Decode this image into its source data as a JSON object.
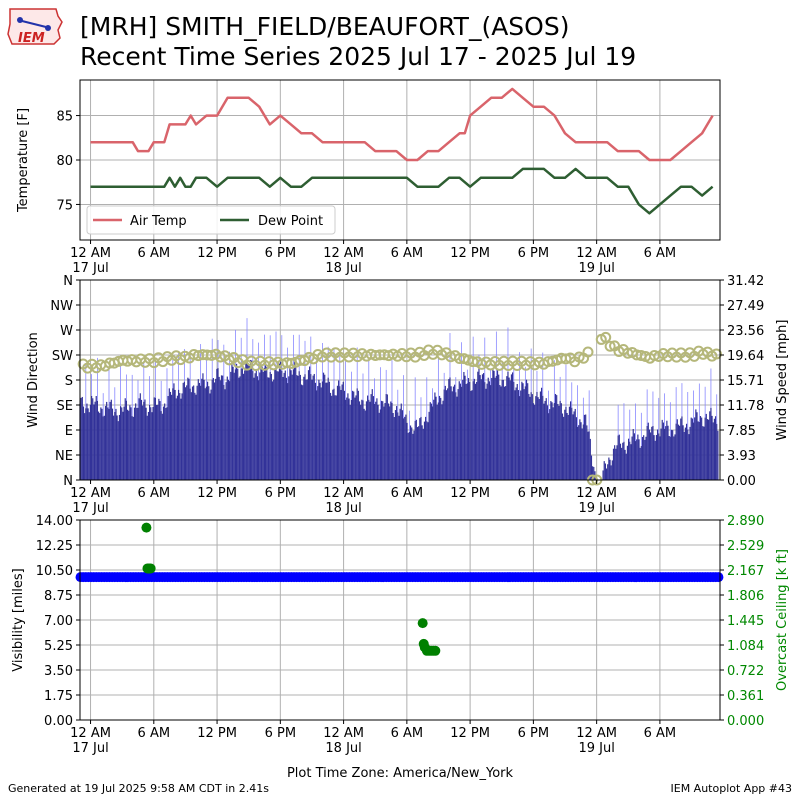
{
  "header": {
    "title_line1": "[MRH] SMITH_FIELD/BEAUFORT_(ASOS)",
    "title_line2": "Recent Time Series 2025 Jul 17 - 2025 Jul 19",
    "logo_text": "IEM"
  },
  "footer": {
    "left": "Generated at 19 Jul 2025 9:58 AM CDT in 2.41s",
    "right": "IEM Autoplot App #43"
  },
  "time_axis": {
    "tick_hours": [
      0,
      6,
      12,
      18,
      24,
      30,
      36,
      42,
      48,
      54
    ],
    "tick_labels": [
      "12 AM",
      "6 AM",
      "12 PM",
      "6 PM",
      "12 AM",
      "6 AM",
      "12 PM",
      "6 PM",
      "12 AM",
      "6 AM"
    ],
    "date_labels": {
      "0": "17 Jul",
      "24": "18 Jul",
      "48": "19 Jul"
    },
    "xlabel": "Plot Time Zone: America/New_York"
  },
  "chart_data": [
    {
      "type": "line",
      "ylabel": "Temperature [F]",
      "ylim": [
        71,
        89
      ],
      "yticks": [
        75,
        80,
        85
      ],
      "xlim": [
        -1,
        59.7
      ],
      "grid": true,
      "legend": "bottom-left",
      "series": [
        {
          "name": "Air Temp",
          "color": "#d9646b",
          "x": [
            0,
            1,
            2,
            3,
            4,
            4.5,
            5,
            5.5,
            6,
            7,
            7.5,
            8,
            9,
            9.5,
            10,
            11,
            12,
            13,
            14,
            15,
            16,
            17,
            18,
            19,
            20,
            21,
            22,
            23,
            24,
            25,
            26,
            27,
            28,
            29,
            30,
            31,
            32,
            33,
            34,
            35,
            35.5,
            36,
            37,
            38,
            39,
            40,
            41,
            42,
            43,
            44,
            45,
            46,
            47,
            48,
            49,
            50,
            51,
            52,
            53,
            54,
            55,
            56,
            57,
            58,
            59
          ],
          "y": [
            82,
            82,
            82,
            82,
            82,
            81,
            81,
            81,
            82,
            82,
            84,
            84,
            84,
            85,
            84,
            85,
            85,
            87,
            87,
            87,
            86,
            84,
            85,
            84,
            83,
            83,
            82,
            82,
            82,
            82,
            82,
            81,
            81,
            81,
            80,
            80,
            81,
            81,
            82,
            83,
            83,
            85,
            86,
            87,
            87,
            88,
            87,
            86,
            86,
            85,
            83,
            82,
            82,
            82,
            82,
            81,
            81,
            81,
            80,
            80,
            80,
            81,
            82,
            83,
            85
          ]
        },
        {
          "name": "Dew Point",
          "color": "#2e5e32",
          "x": [
            0,
            1,
            2,
            3,
            4,
            5,
            6,
            7,
            7.5,
            8,
            8.5,
            9,
            9.5,
            10,
            11,
            12,
            13,
            14,
            15,
            16,
            17,
            18,
            19,
            20,
            21,
            22,
            23,
            24,
            25,
            26,
            27,
            28,
            29,
            30,
            31,
            32,
            33,
            34,
            35,
            36,
            37,
            38,
            39,
            40,
            41,
            42,
            43,
            44,
            45,
            46,
            47,
            48,
            49,
            50,
            51,
            52,
            53,
            54,
            55,
            56,
            57,
            58,
            59
          ],
          "y": [
            77,
            77,
            77,
            77,
            77,
            77,
            77,
            77,
            78,
            77,
            78,
            77,
            77,
            78,
            78,
            77,
            78,
            78,
            78,
            78,
            77,
            78,
            77,
            77,
            78,
            78,
            78,
            78,
            78,
            78,
            78,
            78,
            78,
            78,
            77,
            77,
            77,
            78,
            78,
            77,
            78,
            78,
            78,
            78,
            79,
            79,
            79,
            78,
            78,
            79,
            78,
            78,
            78,
            77,
            77,
            75,
            74,
            75,
            76,
            77,
            77,
            76,
            77
          ]
        }
      ]
    },
    {
      "type": "bar+scatter",
      "ylabel": "Wind Direction",
      "ylabel_right": "Wind Speed [mph]",
      "yticks_direction": [
        "N",
        "NE",
        "E",
        "SE",
        "S",
        "SW",
        "W",
        "NW",
        "N"
      ],
      "ylim_direction": [
        0,
        360
      ],
      "yticks_speed": [
        "0.00",
        "3.93",
        "7.85",
        "11.78",
        "15.71",
        "19.64",
        "23.56",
        "27.49",
        "31.42"
      ],
      "ylim_speed": [
        0,
        31.42
      ],
      "xlim": [
        -1,
        59.7
      ],
      "grid": true,
      "bar_color": "#333399",
      "gust_color": "#8888ff",
      "marker_color": "#b5b77a",
      "direction_anchors": {
        "x": [
          0,
          1,
          2,
          3,
          4,
          6,
          8,
          9,
          10,
          11,
          12,
          13,
          14,
          15,
          16,
          17,
          18,
          19,
          20,
          21,
          22,
          23,
          24,
          25,
          26,
          27,
          28,
          29,
          30,
          31,
          32,
          33,
          34,
          35,
          36,
          37,
          38,
          39,
          40,
          41,
          42,
          43,
          44,
          45,
          46,
          47,
          48,
          48.5,
          49,
          49.5,
          50,
          51,
          52,
          53,
          54,
          55,
          56,
          57,
          58,
          59
        ],
        "y": [
          205,
          205,
          210,
          215,
          215,
          215,
          220,
          220,
          225,
          225,
          225,
          220,
          215,
          210,
          210,
          210,
          210,
          210,
          215,
          220,
          225,
          225,
          225,
          225,
          225,
          225,
          225,
          225,
          225,
          225,
          230,
          230,
          225,
          220,
          215,
          210,
          210,
          210,
          210,
          210,
          210,
          210,
          215,
          220,
          215,
          225,
          235,
          260,
          250,
          240,
          235,
          230,
          225,
          220,
          225,
          225,
          225,
          225,
          230,
          225
        ]
      },
      "speed_anchors": {
        "x": [
          0,
          1,
          2,
          3,
          4,
          5,
          6,
          7,
          8,
          9,
          10,
          11,
          12,
          13,
          14,
          15,
          16,
          17,
          18,
          19,
          20,
          21,
          22,
          23,
          24,
          25,
          26,
          27,
          28,
          29,
          30,
          31,
          32,
          33,
          34,
          35,
          36,
          37,
          38,
          39,
          40,
          41,
          42,
          43,
          44,
          45,
          46,
          47,
          48,
          48.5,
          49,
          50,
          51,
          52,
          53,
          54,
          55,
          56,
          57,
          58,
          59
        ],
        "y": [
          12,
          11.5,
          11,
          11,
          11.5,
          12,
          11.5,
          12,
          14,
          14.5,
          15,
          15,
          16,
          16,
          17.5,
          18,
          17,
          17,
          17,
          17,
          16.5,
          16,
          15.5,
          14.5,
          14,
          13,
          12.5,
          12.5,
          12,
          11.5,
          9,
          8,
          10.5,
          13,
          14.5,
          15,
          15.5,
          16,
          16,
          16,
          15.5,
          14.5,
          13.5,
          12.5,
          12,
          11.5,
          10,
          9,
          0,
          0,
          3,
          5.5,
          6,
          6.5,
          7.5,
          8,
          8,
          8.5,
          9,
          10,
          9.5
        ]
      }
    },
    {
      "type": "scatter",
      "ylabel": "Visibility [miles]",
      "ylabel_right": "Overcast Ceiling [k ft]",
      "ylabel_right_color": "#008800",
      "yticks_visibility": [
        "0.00",
        "1.75",
        "3.50",
        "5.25",
        "7.00",
        "8.75",
        "10.50",
        "12.25",
        "14.00"
      ],
      "ylim_visibility": [
        0,
        14
      ],
      "yticks_ceiling": [
        "0.000",
        "0.361",
        "0.722",
        "1.084",
        "1.445",
        "1.806",
        "2.167",
        "2.529",
        "2.890"
      ],
      "ylim_ceiling": [
        0,
        2.89
      ],
      "xlim": [
        -1,
        59.7
      ],
      "grid": true,
      "visibility_color": "#0000ff",
      "visibility_value": 10,
      "ceiling_color": "#008000",
      "ceiling_points": {
        "x": [
          5.3,
          5.4,
          5.5,
          5.6,
          5.7,
          31.5,
          31.6,
          31.7,
          31.9,
          32.1,
          32.3,
          32.5,
          32.7
        ],
        "y": [
          2.78,
          2.19,
          2.19,
          2.19,
          2.19,
          1.4,
          1.1,
          1.05,
          1.0,
          1.0,
          1.0,
          1.0,
          1.0
        ]
      }
    }
  ]
}
